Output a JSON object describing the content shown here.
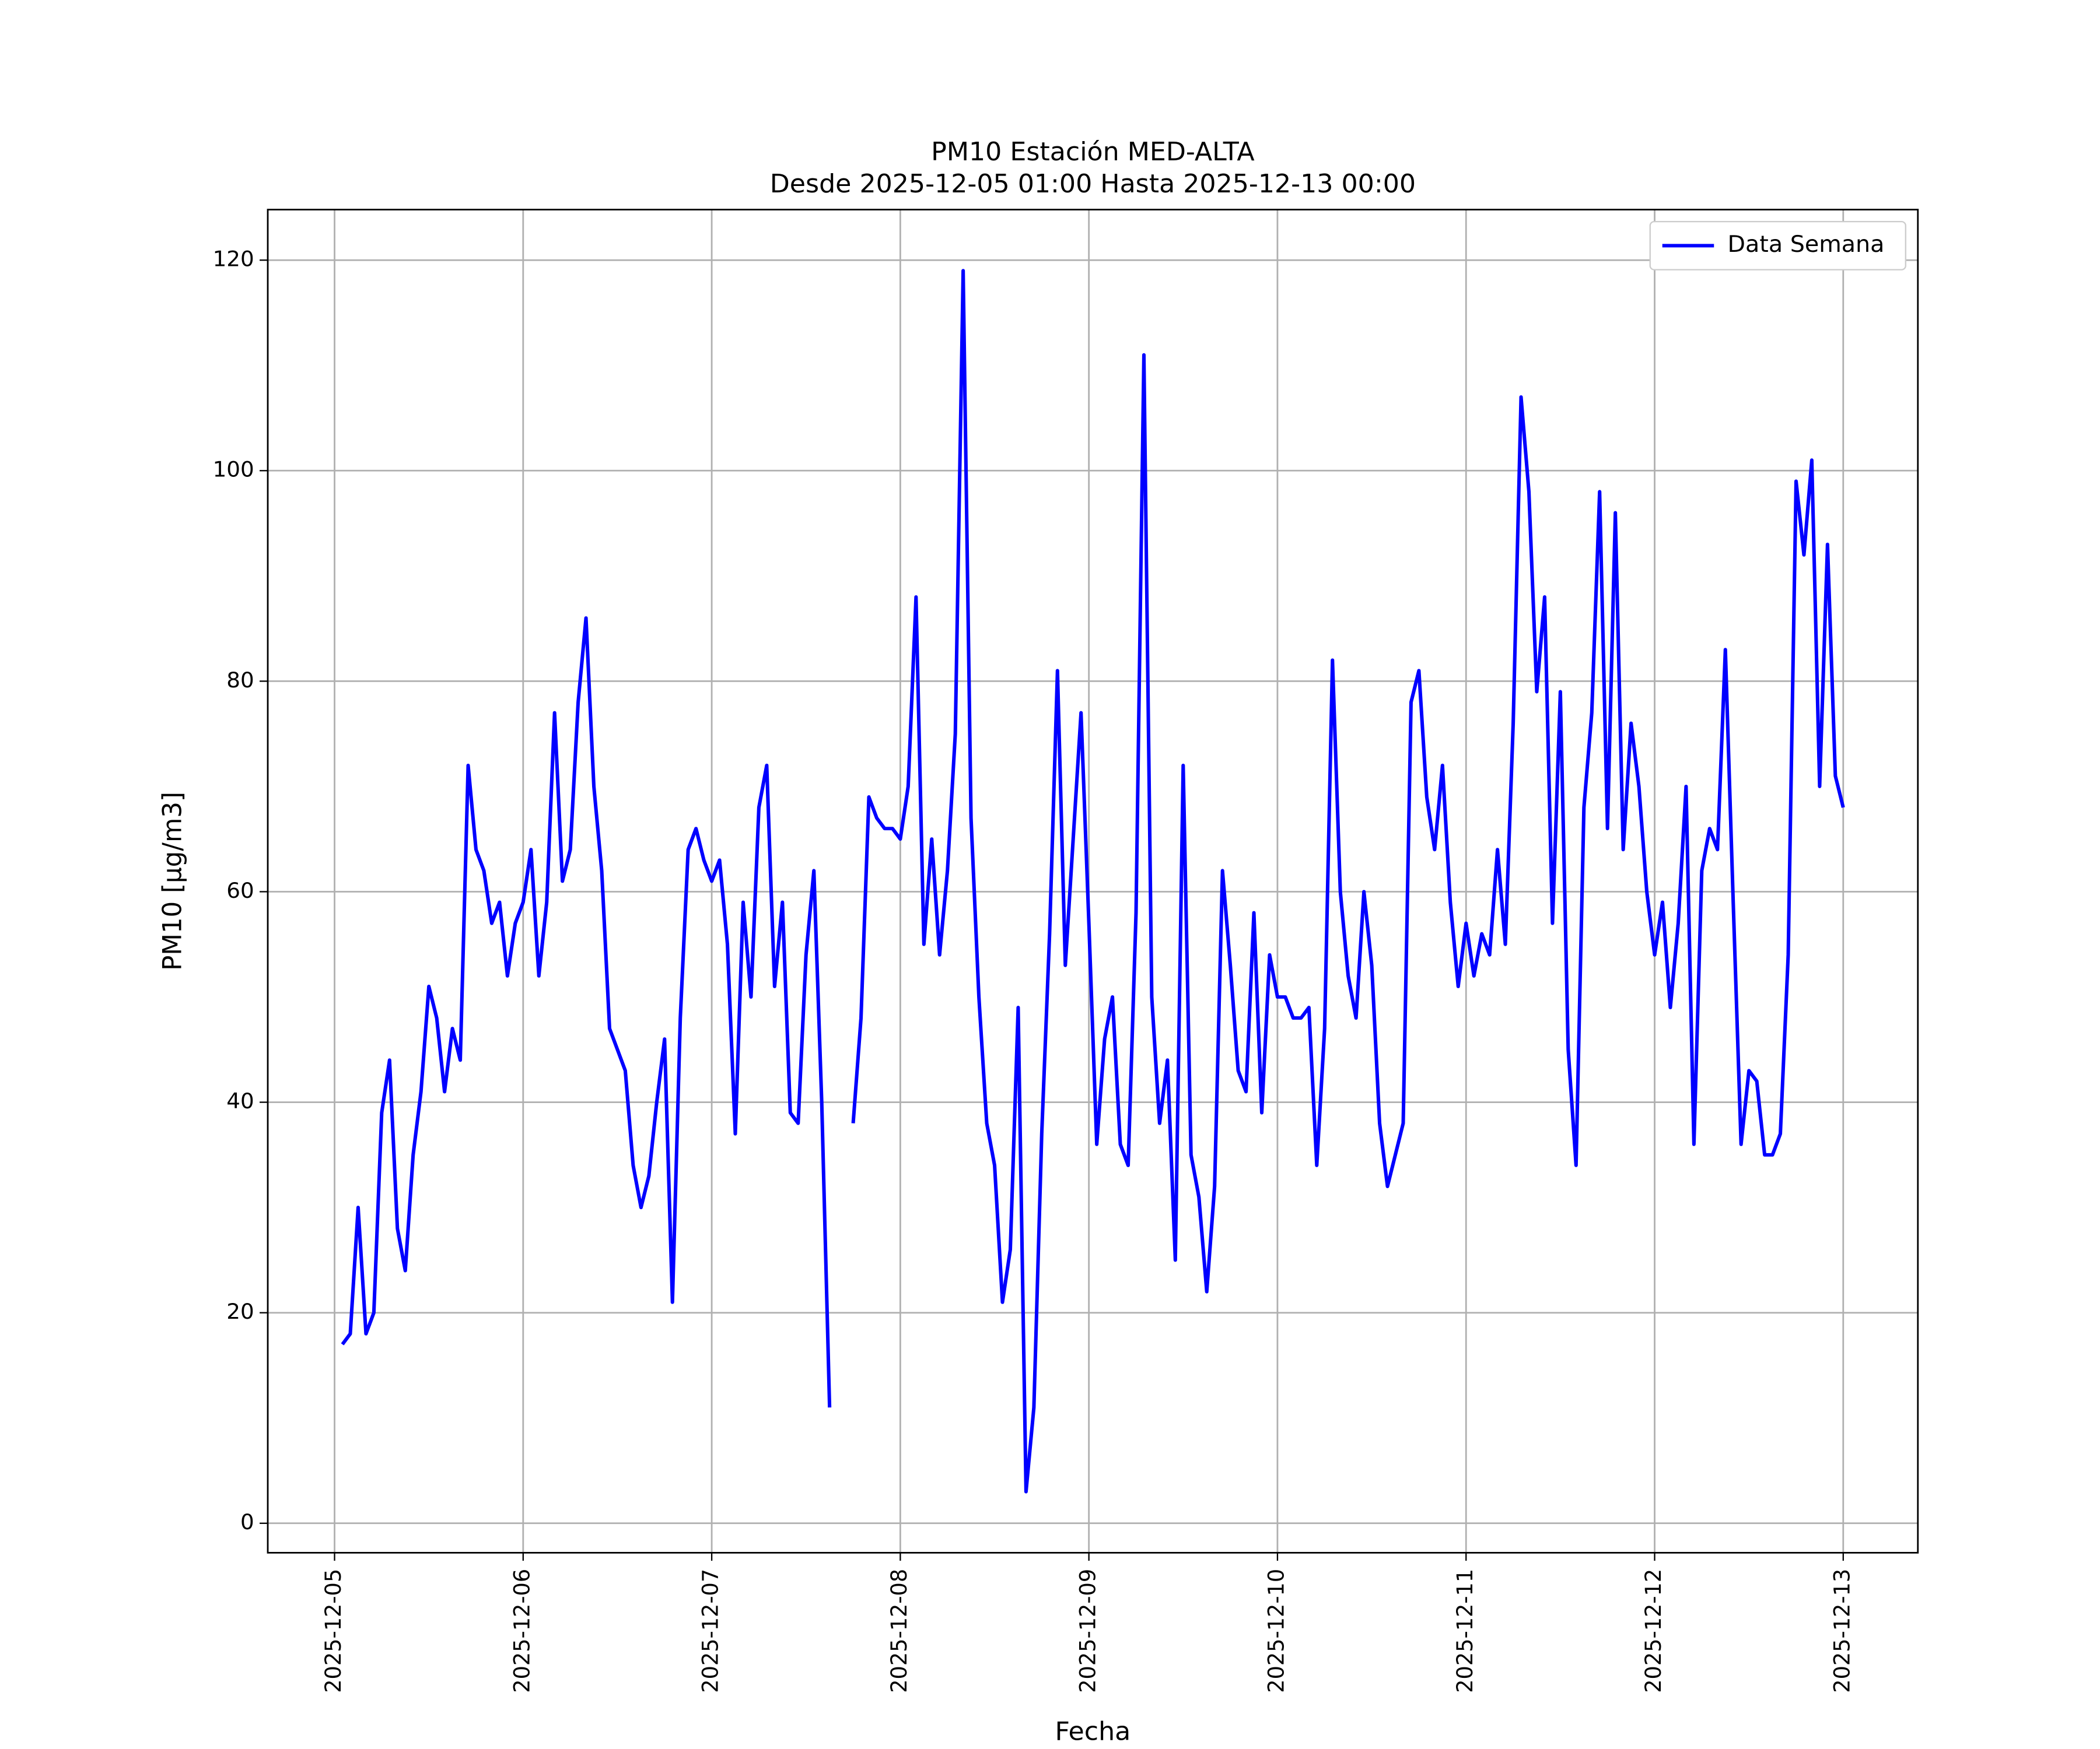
{
  "chart_data": {
    "type": "line",
    "title": "PM10 Estación MED-ALTA",
    "subtitle": "Desde 2025-12-05 01:00 Hasta 2025-12-13 00:00",
    "x_label": "Fecha",
    "y_label": "PM10 [μg/m3]",
    "x": [
      "2025-12-05 01:00",
      "2025-12-05 02:00",
      "2025-12-05 03:00",
      "2025-12-05 04:00",
      "2025-12-05 05:00",
      "2025-12-05 06:00",
      "2025-12-05 07:00",
      "2025-12-05 08:00",
      "2025-12-05 09:00",
      "2025-12-05 10:00",
      "2025-12-05 11:00",
      "2025-12-05 12:00",
      "2025-12-05 13:00",
      "2025-12-05 14:00",
      "2025-12-05 15:00",
      "2025-12-05 16:00",
      "2025-12-05 17:00",
      "2025-12-05 18:00",
      "2025-12-05 19:00",
      "2025-12-05 20:00",
      "2025-12-05 21:00",
      "2025-12-05 22:00",
      "2025-12-05 23:00",
      "2025-12-06 00:00",
      "2025-12-06 01:00",
      "2025-12-06 02:00",
      "2025-12-06 03:00",
      "2025-12-06 04:00",
      "2025-12-06 05:00",
      "2025-12-06 06:00",
      "2025-12-06 07:00",
      "2025-12-06 08:00",
      "2025-12-06 09:00",
      "2025-12-06 10:00",
      "2025-12-06 11:00",
      "2025-12-06 12:00",
      "2025-12-06 13:00",
      "2025-12-06 14:00",
      "2025-12-06 15:00",
      "2025-12-06 16:00",
      "2025-12-06 17:00",
      "2025-12-06 18:00",
      "2025-12-06 19:00",
      "2025-12-06 20:00",
      "2025-12-06 21:00",
      "2025-12-06 22:00",
      "2025-12-06 23:00",
      "2025-12-07 00:00",
      "2025-12-07 01:00",
      "2025-12-07 02:00",
      "2025-12-07 03:00",
      "2025-12-07 04:00",
      "2025-12-07 05:00",
      "2025-12-07 06:00",
      "2025-12-07 07:00",
      "2025-12-07 08:00",
      "2025-12-07 09:00",
      "2025-12-07 10:00",
      "2025-12-07 11:00",
      "2025-12-07 12:00",
      "2025-12-07 13:00",
      "2025-12-07 14:00",
      "2025-12-07 15:00",
      "2025-12-07 16:00",
      "2025-12-07 17:00",
      "2025-12-07 18:00",
      "2025-12-07 19:00",
      "2025-12-07 20:00",
      "2025-12-07 21:00",
      "2025-12-07 22:00",
      "2025-12-07 23:00",
      "2025-12-08 00:00",
      "2025-12-08 01:00",
      "2025-12-08 02:00",
      "2025-12-08 03:00",
      "2025-12-08 04:00",
      "2025-12-08 05:00",
      "2025-12-08 06:00",
      "2025-12-08 07:00",
      "2025-12-08 08:00",
      "2025-12-08 09:00",
      "2025-12-08 10:00",
      "2025-12-08 11:00",
      "2025-12-08 12:00",
      "2025-12-08 13:00",
      "2025-12-08 14:00",
      "2025-12-08 15:00",
      "2025-12-08 16:00",
      "2025-12-08 17:00",
      "2025-12-08 18:00",
      "2025-12-08 19:00",
      "2025-12-08 20:00",
      "2025-12-08 21:00",
      "2025-12-08 22:00",
      "2025-12-08 23:00",
      "2025-12-09 00:00",
      "2025-12-09 01:00",
      "2025-12-09 02:00",
      "2025-12-09 03:00",
      "2025-12-09 04:00",
      "2025-12-09 05:00",
      "2025-12-09 06:00",
      "2025-12-09 07:00",
      "2025-12-09 08:00",
      "2025-12-09 09:00",
      "2025-12-09 10:00",
      "2025-12-09 11:00",
      "2025-12-09 12:00",
      "2025-12-09 13:00",
      "2025-12-09 14:00",
      "2025-12-09 15:00",
      "2025-12-09 16:00",
      "2025-12-09 17:00",
      "2025-12-09 18:00",
      "2025-12-09 19:00",
      "2025-12-09 20:00",
      "2025-12-09 21:00",
      "2025-12-09 22:00",
      "2025-12-09 23:00",
      "2025-12-10 00:00",
      "2025-12-10 01:00",
      "2025-12-10 02:00",
      "2025-12-10 03:00",
      "2025-12-10 04:00",
      "2025-12-10 05:00",
      "2025-12-10 06:00",
      "2025-12-10 07:00",
      "2025-12-10 08:00",
      "2025-12-10 09:00",
      "2025-12-10 10:00",
      "2025-12-10 11:00",
      "2025-12-10 12:00",
      "2025-12-10 13:00",
      "2025-12-10 14:00",
      "2025-12-10 15:00",
      "2025-12-10 16:00",
      "2025-12-10 17:00",
      "2025-12-10 18:00",
      "2025-12-10 19:00",
      "2025-12-10 20:00",
      "2025-12-10 21:00",
      "2025-12-10 22:00",
      "2025-12-10 23:00",
      "2025-12-11 00:00",
      "2025-12-11 01:00",
      "2025-12-11 02:00",
      "2025-12-11 03:00",
      "2025-12-11 04:00",
      "2025-12-11 05:00",
      "2025-12-11 06:00",
      "2025-12-11 07:00",
      "2025-12-11 08:00",
      "2025-12-11 09:00",
      "2025-12-11 10:00",
      "2025-12-11 11:00",
      "2025-12-11 12:00",
      "2025-12-11 13:00",
      "2025-12-11 14:00",
      "2025-12-11 15:00",
      "2025-12-11 16:00",
      "2025-12-11 17:00",
      "2025-12-11 18:00",
      "2025-12-11 19:00",
      "2025-12-11 20:00",
      "2025-12-11 21:00",
      "2025-12-11 22:00",
      "2025-12-11 23:00",
      "2025-12-12 00:00",
      "2025-12-12 01:00",
      "2025-12-12 02:00",
      "2025-12-12 03:00",
      "2025-12-12 04:00",
      "2025-12-12 05:00",
      "2025-12-12 06:00",
      "2025-12-12 07:00",
      "2025-12-12 08:00",
      "2025-12-12 09:00",
      "2025-12-12 10:00",
      "2025-12-12 11:00",
      "2025-12-12 12:00",
      "2025-12-12 13:00",
      "2025-12-12 14:00",
      "2025-12-12 15:00",
      "2025-12-12 16:00",
      "2025-12-12 17:00",
      "2025-12-12 18:00",
      "2025-12-12 19:00",
      "2025-12-12 20:00",
      "2025-12-12 21:00",
      "2025-12-12 22:00",
      "2025-12-12 23:00",
      "2025-12-13 00:00"
    ],
    "series": [
      {
        "name": "Data Semana",
        "color": "#0000ff",
        "values": [
          17,
          18,
          30,
          18,
          20,
          39,
          44,
          28,
          24,
          35,
          41,
          51,
          48,
          41,
          47,
          44,
          72,
          64,
          62,
          57,
          59,
          52,
          57,
          59,
          64,
          52,
          59,
          77,
          61,
          64,
          78,
          86,
          70,
          62,
          47,
          45,
          43,
          34,
          30,
          33,
          40,
          46,
          21,
          48,
          64,
          66,
          63,
          61,
          63,
          55,
          37,
          59,
          50,
          68,
          72,
          51,
          59,
          39,
          38,
          54,
          62,
          40,
          11,
          null,
          null,
          38,
          48,
          69,
          67,
          66,
          66,
          65,
          70,
          88,
          55,
          65,
          54,
          62,
          75,
          119,
          67,
          50,
          38,
          34,
          21,
          26,
          49,
          3,
          11,
          37,
          56,
          81,
          53,
          65,
          77,
          57,
          36,
          46,
          50,
          36,
          34,
          58,
          111,
          50,
          38,
          44,
          25,
          72,
          35,
          31,
          22,
          32,
          62,
          53,
          43,
          41,
          58,
          39,
          54,
          50,
          50,
          48,
          48,
          49,
          34,
          47,
          82,
          60,
          52,
          48,
          60,
          53,
          38,
          32,
          35,
          38,
          78,
          81,
          69,
          64,
          72,
          59,
          51,
          57,
          52,
          56,
          54,
          64,
          55,
          76,
          107,
          98,
          79,
          88,
          57,
          79,
          45,
          34,
          68,
          77,
          98,
          66,
          96,
          64,
          76,
          70,
          60,
          54,
          59,
          49,
          57,
          70,
          36,
          62,
          66,
          64,
          83,
          59,
          36,
          43,
          42,
          35,
          35,
          37,
          54,
          99,
          92,
          101,
          70,
          93,
          71,
          68
        ]
      }
    ],
    "xlim": [
      "2025-12-04 15:30",
      "2025-12-13 09:30"
    ],
    "xticks": [
      "2025-12-05",
      "2025-12-06",
      "2025-12-07",
      "2025-12-08",
      "2025-12-09",
      "2025-12-10",
      "2025-12-11",
      "2025-12-12",
      "2025-12-13"
    ],
    "ylim": [
      -2.8,
      124.8
    ],
    "yticks": [
      0,
      20,
      40,
      60,
      80,
      100,
      120
    ],
    "grid": true,
    "legend": "upper right"
  }
}
